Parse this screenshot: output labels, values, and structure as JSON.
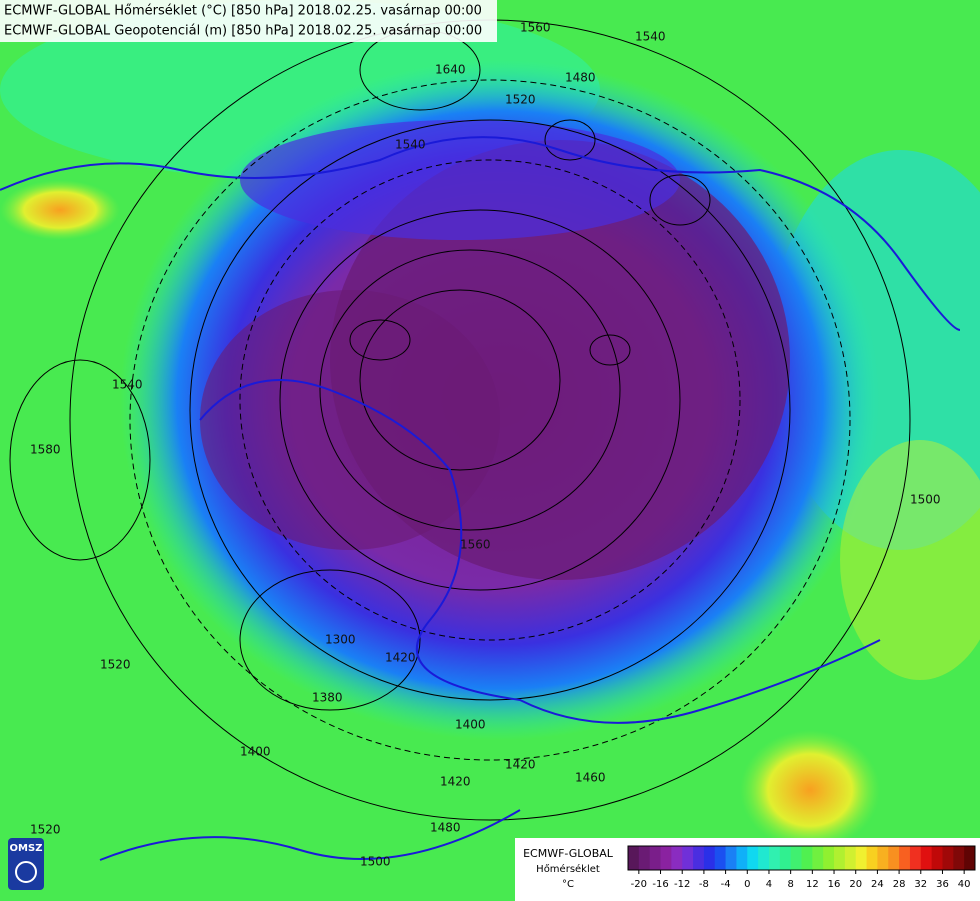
{
  "header": {
    "lines": [
      "ECMWF-GLOBAL Hőmérséklet (°C) [850 hPa] 2018.02.25. vasárnap 00:00",
      "ECMWF-GLOBAL Geopotenciál (m) [850 hPa] 2018.02.25. vasárnap 00:00"
    ]
  },
  "logo": "OMSZ",
  "legend": {
    "title": "ECMWF-GLOBAL",
    "subtitle": "Hőmérséklet",
    "unit": "°C",
    "lim": [
      -22,
      42
    ],
    "ticks": [
      -20,
      -16,
      -12,
      -8,
      -4,
      0,
      4,
      8,
      12,
      16,
      20,
      24,
      28,
      32,
      36,
      40
    ],
    "colors": [
      "#58175a",
      "#6a1b74",
      "#7a1e8a",
      "#8a22a0",
      "#8a2cc0",
      "#7030d8",
      "#4a2ee0",
      "#2a30e8",
      "#1b50f0",
      "#1a80f5",
      "#10b0f8",
      "#10d8f0",
      "#20e8d0",
      "#30f0b0",
      "#30f090",
      "#40f070",
      "#50f050",
      "#70f040",
      "#90f030",
      "#b0f030",
      "#d0f030",
      "#f0f030",
      "#f8d020",
      "#f8b020",
      "#f89020",
      "#f86020",
      "#f03020",
      "#e01010",
      "#c00808",
      "#a00808",
      "#800808",
      "#600404"
    ]
  },
  "contour_labels": [
    1560,
    1540,
    1640,
    1480,
    1520,
    1540,
    1580,
    1540,
    1520,
    1520,
    1500,
    1480,
    1400,
    1420,
    1380,
    1300,
    1420,
    1400,
    1460,
    1420,
    1560,
    1500
  ]
}
